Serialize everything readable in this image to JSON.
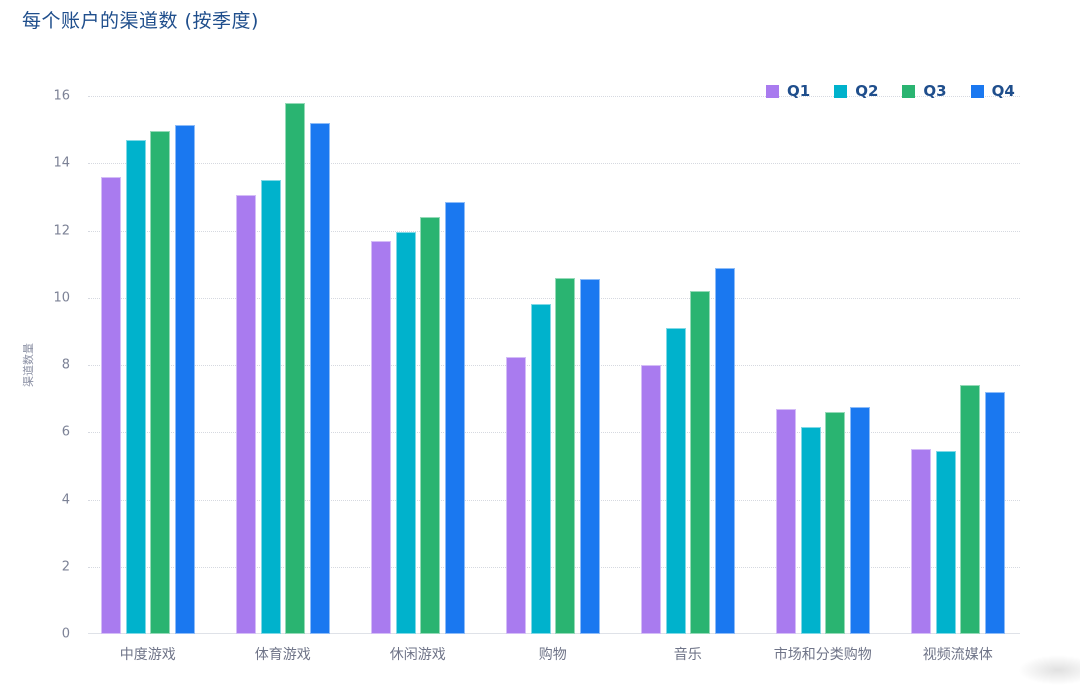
{
  "title": "每个账户的渠道数 (按季度)",
  "chart_data": {
    "type": "bar",
    "title": "每个账户的渠道数 (按季度)",
    "xlabel": "",
    "ylabel": "渠道数量",
    "ylim": [
      0,
      16
    ],
    "yticks": [
      0,
      2,
      4,
      6,
      8,
      10,
      12,
      14,
      16
    ],
    "grid": true,
    "legend_position": "top-right",
    "categories": [
      "中度游戏",
      "体育游戏",
      "休闲游戏",
      "购物",
      "音乐",
      "市场和分类购物",
      "视频流媒体"
    ],
    "series": [
      {
        "name": "Q1",
        "color": "#a97bef",
        "values": [
          13.6,
          13.05,
          11.7,
          8.25,
          8.0,
          6.7,
          5.5
        ]
      },
      {
        "name": "Q2",
        "color": "#00b2cc",
        "values": [
          14.7,
          13.5,
          11.95,
          9.8,
          9.1,
          6.15,
          5.45
        ]
      },
      {
        "name": "Q3",
        "color": "#2ab471",
        "values": [
          14.95,
          15.8,
          12.4,
          10.6,
          10.2,
          6.6,
          7.4
        ]
      },
      {
        "name": "Q4",
        "color": "#1a78f0",
        "values": [
          15.15,
          15.2,
          12.85,
          10.55,
          10.9,
          6.75,
          7.2
        ]
      }
    ]
  }
}
